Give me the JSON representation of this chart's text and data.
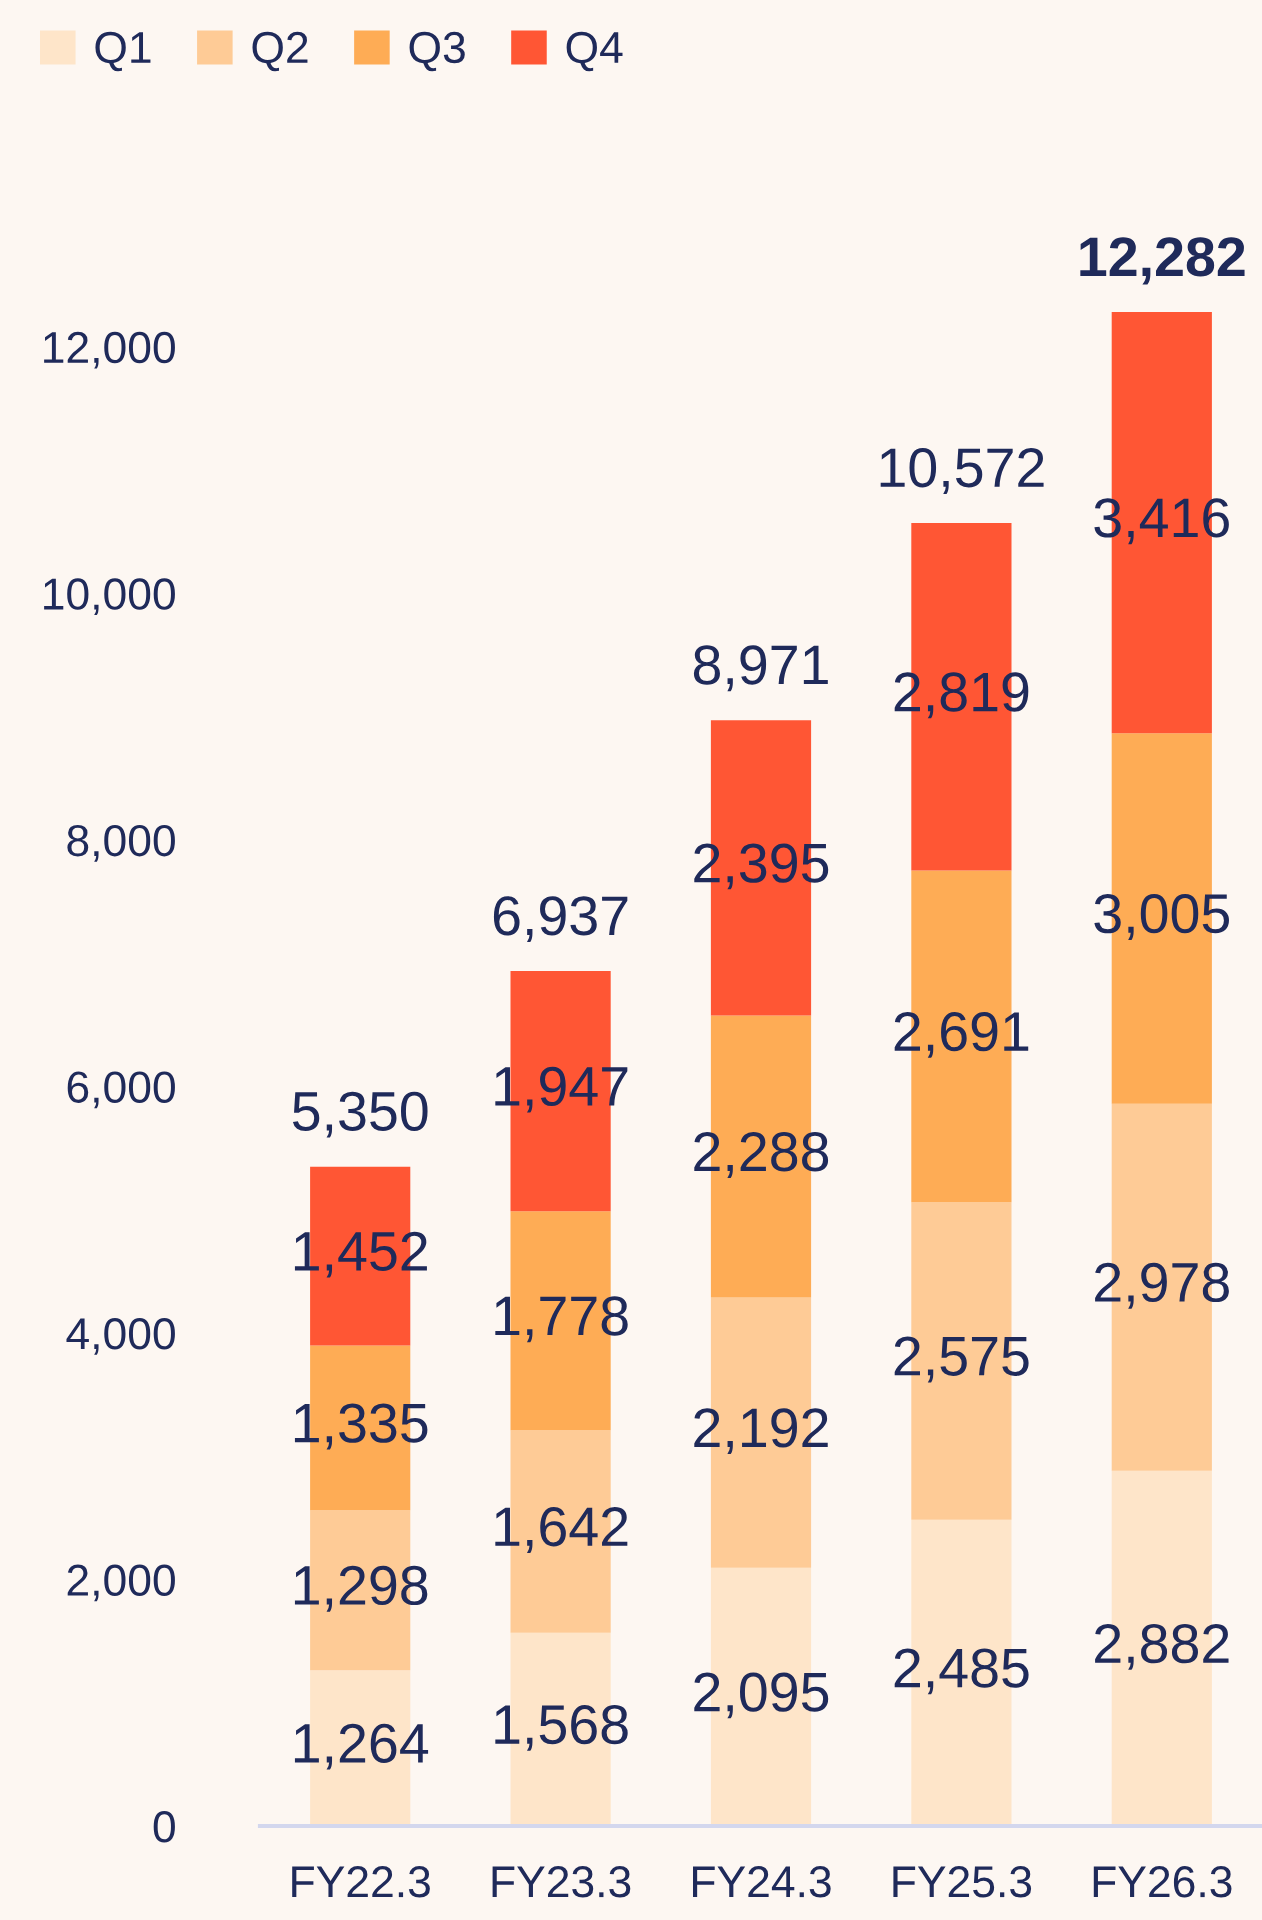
{
  "chart_data": {
    "type": "bar",
    "stacked": true,
    "categories": [
      "FY22.3",
      "FY23.3",
      "FY24.3",
      "FY25.3",
      "FY26.3"
    ],
    "series": [
      {
        "name": "Q1",
        "color": "#fee5c9",
        "values": [
          1264,
          1568,
          2095,
          2485,
          2882
        ],
        "value_labels": [
          "1,264",
          "1,568",
          "2,095",
          "2,485",
          "2,882"
        ]
      },
      {
        "name": "Q2",
        "color": "#fecb96",
        "values": [
          1298,
          1642,
          2192,
          2575,
          2978
        ],
        "value_labels": [
          "1,298",
          "1,642",
          "2,192",
          "2,575",
          "2,978"
        ]
      },
      {
        "name": "Q3",
        "color": "#feac55",
        "values": [
          1335,
          1778,
          2288,
          2691,
          3005
        ],
        "value_labels": [
          "1,335",
          "1,778",
          "2,288",
          "2,691",
          "3,005"
        ]
      },
      {
        "name": "Q4",
        "color": "#ff5634",
        "values": [
          1452,
          1947,
          2395,
          2819,
          3416
        ],
        "value_labels": [
          "1,452",
          "1,947",
          "2,395",
          "2,819",
          "3,416"
        ]
      }
    ],
    "totals": [
      "5,350",
      "6,937",
      "8,971",
      "10,572",
      "12,282"
    ],
    "yticks": [
      0,
      {
        "value": 2000,
        "label": "2,000"
      },
      {
        "value": 4000,
        "label": "4,000"
      },
      {
        "value": 6000,
        "label": "6,000"
      },
      {
        "value": 8000,
        "label": "8,000"
      },
      {
        "value": 10000,
        "label": "10,000"
      },
      {
        "value": 12000,
        "label": "12,000"
      }
    ],
    "ylim": [
      0,
      12282
    ],
    "grid": false,
    "legend": "top left"
  }
}
